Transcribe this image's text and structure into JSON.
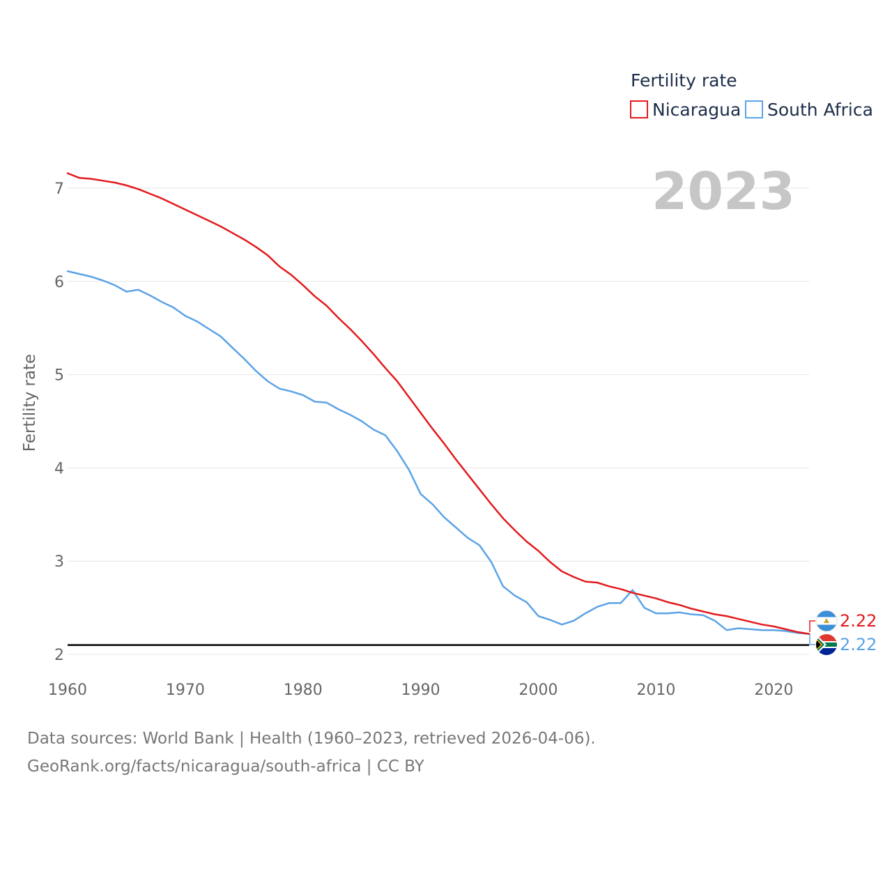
{
  "chart_data": {
    "type": "line",
    "ylabel": "Fertility rate",
    "xlabel": "",
    "ylim": [
      2,
      7.3
    ],
    "xlim": [
      1960,
      2023
    ],
    "y_ticks": [
      "2",
      "3",
      "4",
      "5",
      "6",
      "7"
    ],
    "x_ticks": [
      "1960",
      "1970",
      "1980",
      "1990",
      "2000",
      "2010",
      "2020"
    ],
    "current_year": "2023",
    "reference_line": 2.1,
    "legend_title": "Fertility rate",
    "x": [
      1960,
      1961,
      1962,
      1963,
      1964,
      1965,
      1966,
      1967,
      1968,
      1969,
      1970,
      1971,
      1972,
      1973,
      1974,
      1975,
      1976,
      1977,
      1978,
      1979,
      1980,
      1981,
      1982,
      1983,
      1984,
      1985,
      1986,
      1987,
      1988,
      1989,
      1990,
      1991,
      1992,
      1993,
      1994,
      1995,
      1996,
      1997,
      1998,
      1999,
      2000,
      2001,
      2002,
      2003,
      2004,
      2005,
      2006,
      2007,
      2008,
      2009,
      2010,
      2011,
      2012,
      2013,
      2014,
      2015,
      2016,
      2017,
      2018,
      2019,
      2020,
      2021,
      2022,
      2023
    ],
    "series": [
      {
        "name": "Nicaragua",
        "color": "#e31a1c",
        "end_label": "2.22",
        "values": [
          7.16,
          7.11,
          7.1,
          7.08,
          7.06,
          7.03,
          6.99,
          6.94,
          6.89,
          6.83,
          6.77,
          6.71,
          6.65,
          6.59,
          6.52,
          6.45,
          6.37,
          6.28,
          6.16,
          6.07,
          5.96,
          5.84,
          5.74,
          5.61,
          5.49,
          5.36,
          5.22,
          5.07,
          4.93,
          4.76,
          4.59,
          4.42,
          4.26,
          4.09,
          3.93,
          3.77,
          3.61,
          3.46,
          3.33,
          3.21,
          3.11,
          2.99,
          2.89,
          2.83,
          2.78,
          2.77,
          2.73,
          2.7,
          2.66,
          2.63,
          2.6,
          2.56,
          2.53,
          2.49,
          2.46,
          2.43,
          2.41,
          2.38,
          2.35,
          2.32,
          2.3,
          2.27,
          2.24,
          2.22
        ]
      },
      {
        "name": "South Africa",
        "color": "#5ba3e6",
        "end_label": "2.22",
        "values": [
          6.11,
          6.08,
          6.05,
          6.01,
          5.96,
          5.89,
          5.91,
          5.85,
          5.78,
          5.72,
          5.63,
          5.57,
          5.49,
          5.41,
          5.29,
          5.17,
          5.04,
          4.93,
          4.85,
          4.82,
          4.78,
          4.71,
          4.7,
          4.63,
          4.57,
          4.5,
          4.41,
          4.35,
          4.18,
          3.98,
          3.72,
          3.61,
          3.47,
          3.36,
          3.25,
          3.17,
          2.99,
          2.73,
          2.63,
          2.56,
          2.41,
          2.37,
          2.32,
          2.36,
          2.44,
          2.51,
          2.55,
          2.55,
          2.69,
          2.5,
          2.44,
          2.44,
          2.45,
          2.43,
          2.42,
          2.36,
          2.26,
          2.28,
          2.27,
          2.26,
          2.26,
          2.25,
          2.23,
          2.22
        ]
      }
    ]
  },
  "source": {
    "line1": "Data sources: World Bank | Health (1960–2023, retrieved 2026-04-06).",
    "line2": "GeoRank.org/facts/nicaragua/south-africa | CC BY"
  }
}
